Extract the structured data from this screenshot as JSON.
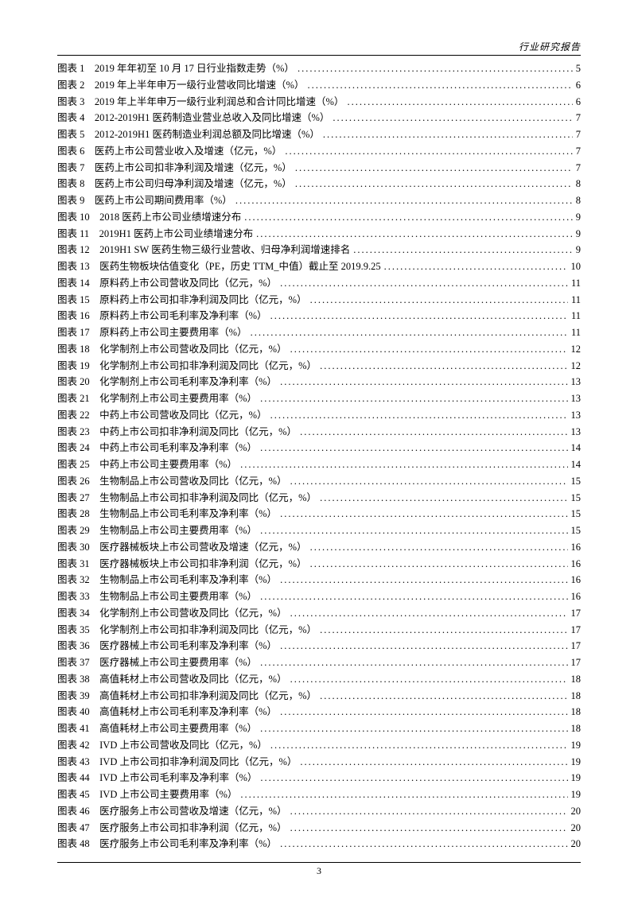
{
  "header": {
    "label": "行业研究报告"
  },
  "footer": {
    "page_number": "3"
  },
  "toc_prefix": "图表",
  "toc": [
    {
      "n": "1",
      "t": "2019 年年初至 10 月 17 日行业指数走势（%）",
      "p": "5"
    },
    {
      "n": "2",
      "t": "2019 年上半年申万一级行业营收同比增速（%）",
      "p": "6"
    },
    {
      "n": "3",
      "t": "2019 年上半年申万一级行业利润总和合计同比增速（%）",
      "p": "6"
    },
    {
      "n": "4",
      "t": "2012-2019H1 医药制造业营业总收入及同比增速（%）",
      "p": "7"
    },
    {
      "n": "5",
      "t": "2012-2019H1 医药制造业利润总额及同比增速（%）",
      "p": "7"
    },
    {
      "n": "6",
      "t": "医药上市公司营业收入及增速（亿元，%）",
      "p": "7"
    },
    {
      "n": "7",
      "t": "医药上市公司扣非净利润及增速（亿元，%）",
      "p": "7"
    },
    {
      "n": "8",
      "t": "医药上市公司归母净利润及增速（亿元，%）",
      "p": "8"
    },
    {
      "n": "9",
      "t": "医药上市公司期间费用率（%）",
      "p": "8"
    },
    {
      "n": "10",
      "t": "2018 医药上市公司业绩增速分布",
      "p": "9"
    },
    {
      "n": "11",
      "t": "2019H1 医药上市公司业绩增速分布",
      "p": "9"
    },
    {
      "n": "12",
      "t": "2019H1 SW 医药生物三级行业营收、归母净利润增速排名",
      "p": "9"
    },
    {
      "n": "13",
      "t": "医药生物板块估值变化（PE，历史 TTM_中值）截止至 2019.9.25",
      "p": "10"
    },
    {
      "n": "14",
      "t": "原料药上市公司营收及同比（亿元，%）",
      "p": "11"
    },
    {
      "n": "15",
      "t": "原料药上市公司扣非净利润及同比（亿元，%）",
      "p": "11"
    },
    {
      "n": "16",
      "t": "原料药上市公司毛利率及净利率（%）",
      "p": "11"
    },
    {
      "n": "17",
      "t": "原料药上市公司主要费用率（%）",
      "p": "11"
    },
    {
      "n": "18",
      "t": "化学制剂上市公司营收及同比（亿元，%）",
      "p": "12"
    },
    {
      "n": "19",
      "t": "化学制剂上市公司扣非净利润及同比（亿元，%）",
      "p": "12"
    },
    {
      "n": "20",
      "t": "化学制剂上市公司毛利率及净利率（%）",
      "p": "13"
    },
    {
      "n": "21",
      "t": "化学制剂上市公司主要费用率（%）",
      "p": "13"
    },
    {
      "n": "22",
      "t": "中药上市公司营收及同比（亿元，%）",
      "p": "13"
    },
    {
      "n": "23",
      "t": "中药上市公司扣非净利润及同比（亿元，%）",
      "p": "13"
    },
    {
      "n": "24",
      "t": "中药上市公司毛利率及净利率（%）",
      "p": "14"
    },
    {
      "n": "25",
      "t": "中药上市公司主要费用率（%）",
      "p": "14"
    },
    {
      "n": "26",
      "t": "生物制品上市公司营收及同比（亿元，%）",
      "p": "15"
    },
    {
      "n": "27",
      "t": "生物制品上市公司扣非净利润及同比（亿元，%）",
      "p": "15"
    },
    {
      "n": "28",
      "t": "生物制品上市公司毛利率及净利率（%）",
      "p": "15"
    },
    {
      "n": "29",
      "t": "生物制品上市公司主要费用率（%）",
      "p": "15"
    },
    {
      "n": "30",
      "t": "医疗器械板块上市公司营收及增速（亿元，%）",
      "p": "16"
    },
    {
      "n": "31",
      "t": "医疗器械板块上市公司扣非净利润（亿元，%）",
      "p": "16"
    },
    {
      "n": "32",
      "t": "生物制品上市公司毛利率及净利率（%）",
      "p": "16"
    },
    {
      "n": "33",
      "t": "生物制品上市公司主要费用率（%）",
      "p": "16"
    },
    {
      "n": "34",
      "t": "化学制剂上市公司营收及同比（亿元，%）",
      "p": "17"
    },
    {
      "n": "35",
      "t": "化学制剂上市公司扣非净利润及同比（亿元，%）",
      "p": "17"
    },
    {
      "n": "36",
      "t": "医疗器械上市公司毛利率及净利率（%）",
      "p": "17"
    },
    {
      "n": "37",
      "t": "医疗器械上市公司主要费用率（%）",
      "p": "17"
    },
    {
      "n": "38",
      "t": "高值耗材上市公司营收及同比（亿元，%）",
      "p": "18"
    },
    {
      "n": "39",
      "t": "高值耗材上市公司扣非净利润及同比（亿元，%）",
      "p": "18"
    },
    {
      "n": "40",
      "t": "高值耗材上市公司毛利率及净利率（%）",
      "p": "18"
    },
    {
      "n": "41",
      "t": "高值耗材上市公司主要费用率（%）",
      "p": "18"
    },
    {
      "n": "42",
      "t": "IVD 上市公司营收及同比（亿元，%）",
      "p": "19"
    },
    {
      "n": "43",
      "t": "IVD 上市公司扣非净利润及同比（亿元，%）",
      "p": "19"
    },
    {
      "n": "44",
      "t": "IVD 上市公司毛利率及净利率（%）",
      "p": "19"
    },
    {
      "n": "45",
      "t": "IVD 上市公司主要费用率（%）",
      "p": "19"
    },
    {
      "n": "46",
      "t": "医疗服务上市公司营收及增速（亿元，%）",
      "p": "20"
    },
    {
      "n": "47",
      "t": "医疗服务上市公司扣非净利润（亿元，%）",
      "p": "20"
    },
    {
      "n": "48",
      "t": "医疗服务上市公司毛利率及净利率（%）",
      "p": "20"
    }
  ]
}
